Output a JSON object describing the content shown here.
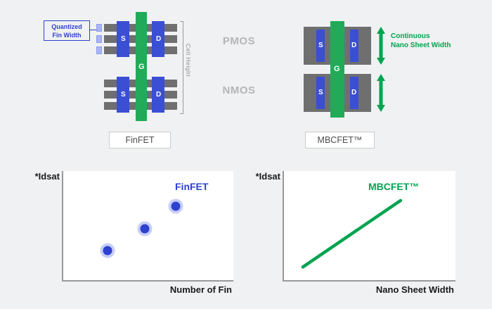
{
  "colors": {
    "background": "#f0f1f2",
    "blue": "#2e41cf",
    "green": "#00a44f",
    "gate_green": "#21ab58",
    "fin_gray": "#6f6f6f",
    "muted_gray": "#b5b5b5"
  },
  "finfet": {
    "callout_line1": "Quantized",
    "callout_line2": "Fin Width",
    "source": "S",
    "drain": "D",
    "gate": "G",
    "cell_height": "Cell Height",
    "caption": "FinFET"
  },
  "region_labels": {
    "pmos": "PMOS",
    "nmos": "NMOS"
  },
  "mbcfet": {
    "source": "S",
    "drain": "D",
    "gate": "G",
    "callout_line1": "Continuous",
    "callout_line2": "Nano Sheet Width",
    "caption": "MBCFET™"
  },
  "chart_data": [
    {
      "type": "scatter",
      "ylabel": "*Idsat",
      "xlabel": "Number of Fin",
      "series": "FinFET",
      "color": "#2e41cf",
      "points": [
        [
          0.26,
          0.27
        ],
        [
          0.48,
          0.47
        ],
        [
          0.66,
          0.68
        ]
      ],
      "xlim": [
        0,
        1
      ],
      "ylim": [
        0,
        1
      ],
      "grid": false,
      "legend_position": "top-right"
    },
    {
      "type": "line",
      "ylabel": "*Idsat",
      "xlabel": "Nano Sheet Width",
      "series": "MBCFET™",
      "color": "#00a44f",
      "points": [
        [
          0.11,
          0.12
        ],
        [
          0.68,
          0.73
        ]
      ],
      "xlim": [
        0,
        1
      ],
      "ylim": [
        0,
        1
      ],
      "grid": false,
      "legend_position": "top-right"
    }
  ]
}
